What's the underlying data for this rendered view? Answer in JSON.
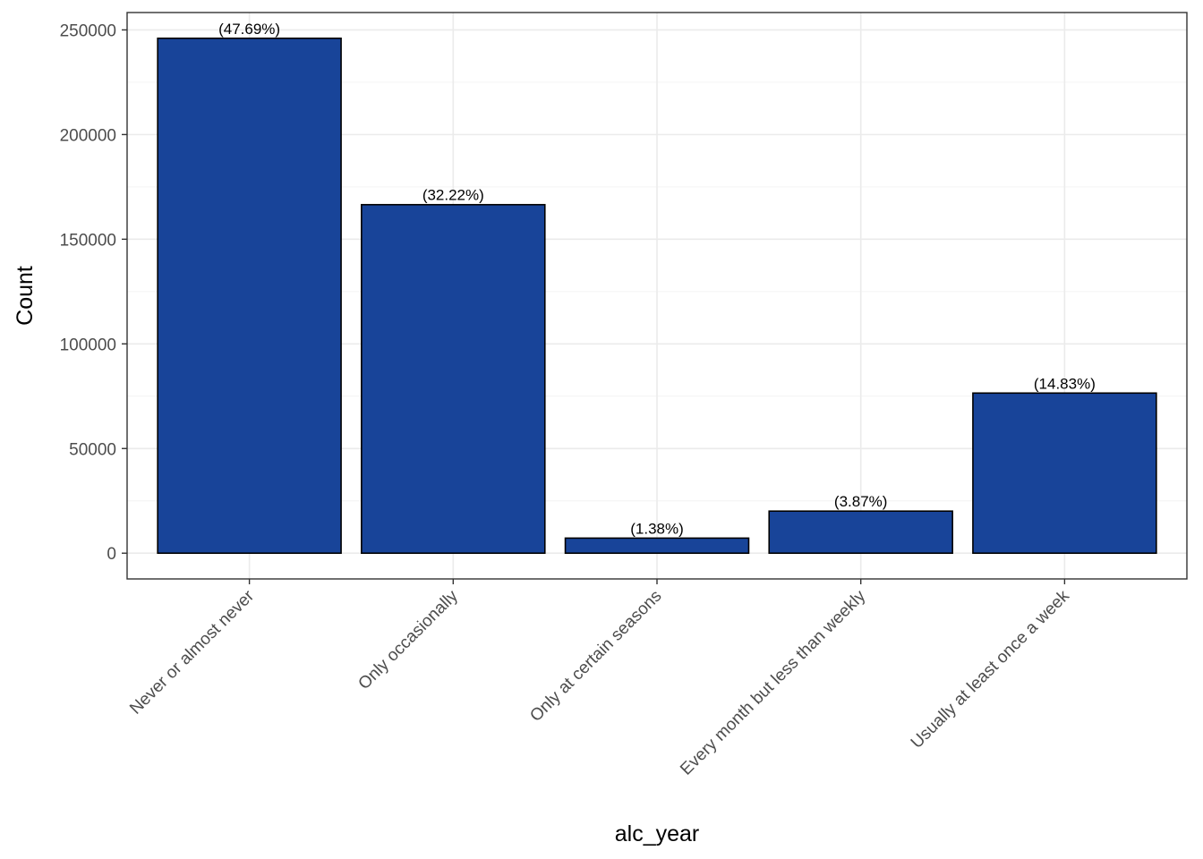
{
  "chart_data": {
    "type": "bar",
    "categories": [
      "Never or almost never",
      "Only occasionally",
      "Only at certain seasons",
      "Every month but less than weekly",
      "Usually at least once a week"
    ],
    "values": [
      246000,
      166500,
      7200,
      20100,
      76500
    ],
    "data_labels": [
      "(47.69%)",
      "(32.22%)",
      "(1.38%)",
      "(3.87%)",
      "(14.83%)"
    ],
    "xlabel": "alc_year",
    "ylabel": "Count",
    "ylim": [
      -12300,
      258300
    ],
    "yticks": [
      0,
      50000,
      100000,
      150000,
      200000,
      250000
    ],
    "ytick_labels": [
      "0",
      "50000",
      "100000",
      "150000",
      "200000",
      "250000"
    ],
    "grid": true,
    "legend": "none",
    "colors": {
      "bar_fill": "#184499",
      "bar_stroke": "#000000",
      "grid_major": "#ebebeb",
      "grid_minor": "#f4f4f4",
      "panel_border": "#333333"
    }
  }
}
